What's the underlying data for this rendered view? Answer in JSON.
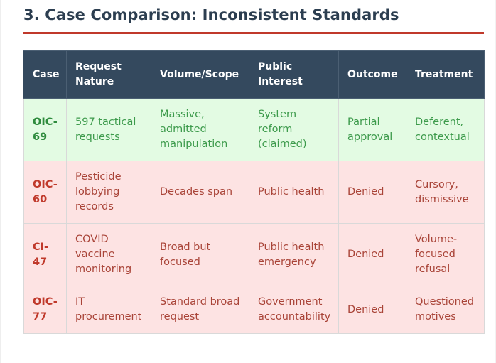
{
  "section": {
    "title": "3. Case Comparison: Inconsistent Standards"
  },
  "colors": {
    "title": "#2c3e50",
    "rule": "#c0392b",
    "header_bg": "#34495e",
    "consistent_bg": "#e3fbe3",
    "consistent_text": "#3c9a4b",
    "inconsistent_bg": "#fde3e3",
    "inconsistent_text": "#a94438"
  },
  "table": {
    "headers": {
      "case": "Case",
      "request_nature": "Request Nature",
      "volume_scope": "Volume/Scope",
      "public_interest": "Public Interest",
      "outcome": "Outcome",
      "treatment": "Treatment"
    },
    "rows": [
      {
        "case": "OIC-69",
        "request_nature": "597 tactical requests",
        "volume_scope": "Massive, admitted manipulation",
        "public_interest": "System reform (claimed)",
        "outcome": "Partial approval",
        "treatment": "Deferent, contextual"
      },
      {
        "case": "OIC-60",
        "request_nature": "Pesticide lobbying records",
        "volume_scope": "Decades span",
        "public_interest": "Public health",
        "outcome": "Denied",
        "treatment": "Cursory, dismissive"
      },
      {
        "case": "CI-47",
        "request_nature": "COVID vaccine monitoring",
        "volume_scope": "Broad but focused",
        "public_interest": "Public health emergency",
        "outcome": "Denied",
        "treatment": "Volume-focused refusal"
      },
      {
        "case": "OIC-77",
        "request_nature": "IT procurement",
        "volume_scope": "Standard broad request",
        "public_interest": "Government accountability",
        "outcome": "Denied",
        "treatment": "Questioned motives"
      }
    ]
  }
}
